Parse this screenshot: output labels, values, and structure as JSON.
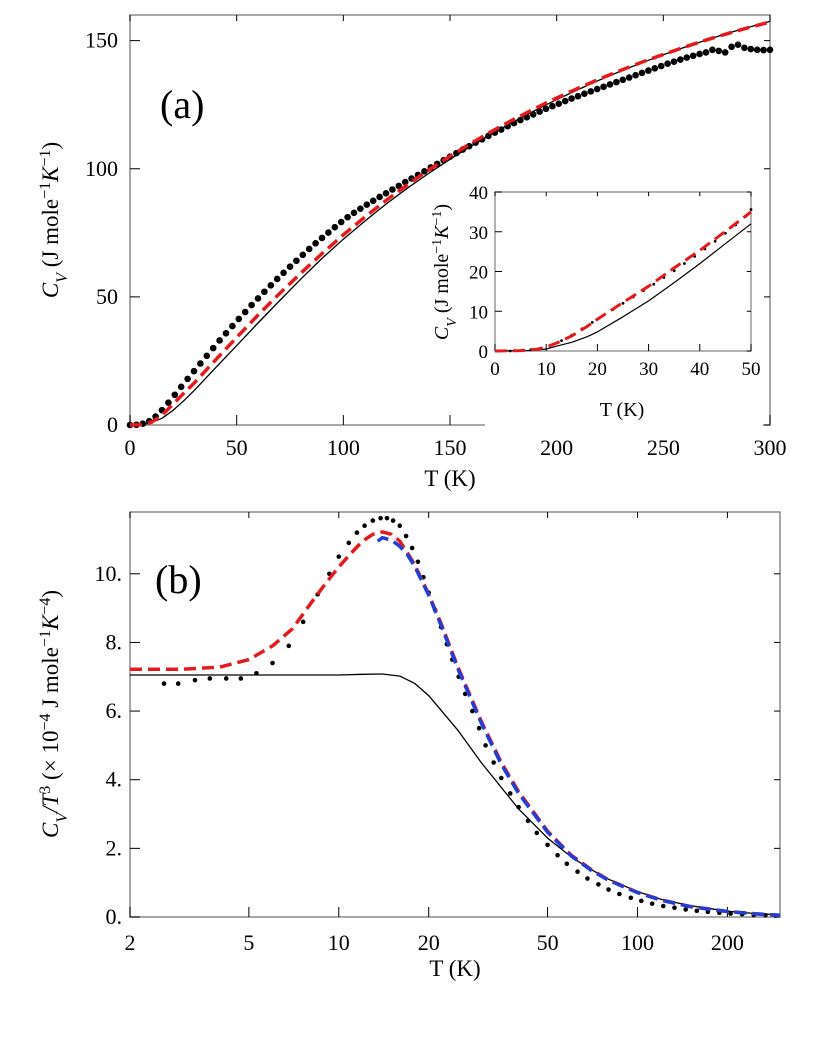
{
  "chart_data": [
    {
      "type": "scatter",
      "panel_label": "(a)",
      "xlabel": "T (K)",
      "ylabel": {
        "base": "C",
        "sub": "V",
        "units_text": " (J mole",
        "sup1": "−1",
        "k": "K",
        "sup2": "−1",
        "close": ")"
      },
      "xlim": [
        0,
        300
      ],
      "ylim": [
        0,
        160
      ],
      "x_ticks": [
        "0",
        "50",
        "100",
        "150",
        "200",
        "250",
        "300"
      ],
      "x_tick_values": [
        0,
        50,
        100,
        150,
        200,
        250,
        300
      ],
      "y_ticks": [
        "0",
        "50",
        "100",
        "150"
      ],
      "y_tick_values": [
        0,
        50,
        100,
        150
      ],
      "colors": {
        "black": "#000000",
        "red": "#e41a1c",
        "blue": "#1f3fd6"
      },
      "series": [
        {
          "style": "dots",
          "color": "#000000",
          "x": [
            0,
            3,
            6,
            9,
            12,
            15,
            18,
            21,
            24,
            27,
            30,
            33,
            36,
            39,
            42,
            45,
            48,
            51,
            54,
            57,
            60,
            63,
            66,
            69,
            72,
            75,
            78,
            81,
            84,
            87,
            90,
            93,
            96,
            99,
            102,
            105,
            108,
            111,
            114,
            117,
            120,
            123,
            126,
            129,
            132,
            135,
            138,
            141,
            144,
            147,
            150,
            153,
            156,
            159,
            162,
            165,
            168,
            171,
            174,
            177,
            180,
            183,
            186,
            189,
            192,
            195,
            198,
            201,
            204,
            207,
            210,
            213,
            216,
            219,
            222,
            225,
            228,
            231,
            234,
            237,
            240,
            243,
            246,
            249,
            252,
            255,
            258,
            261,
            264,
            267,
            270,
            273,
            276,
            279,
            282,
            285,
            288,
            291,
            294,
            297,
            300
          ],
          "y": [
            0,
            0.1,
            0.5,
            1.5,
            3.3,
            5.8,
            8.7,
            11.8,
            14.9,
            18.0,
            21.0,
            24.0,
            27.0,
            30.0,
            33.0,
            35.8,
            38.6,
            41.4,
            44.1,
            46.8,
            49.4,
            52.0,
            54.5,
            57.0,
            59.4,
            61.8,
            64.1,
            66.4,
            68.7,
            70.9,
            73.0,
            75.1,
            77.2,
            79.2,
            81.1,
            82.8,
            84.4,
            86.0,
            87.5,
            89.0,
            90.4,
            91.9,
            93.3,
            94.8,
            96.2,
            97.6,
            99.0,
            100.5,
            101.9,
            103.3,
            104.7,
            106.1,
            107.5,
            108.8,
            110.2,
            111.5,
            112.8,
            114.1,
            115.3,
            116.6,
            117.8,
            119.0,
            120.1,
            121.2,
            122.3,
            123.4,
            124.4,
            125.4,
            126.4,
            127.4,
            128.3,
            129.3,
            130.2,
            131.1,
            132.0,
            132.9,
            133.8,
            134.7,
            135.6,
            136.5,
            137.4,
            138.3,
            139.2,
            140.1,
            141.0,
            141.8,
            142.6,
            143.4,
            144.1,
            144.8,
            145.4,
            146.4,
            146.0,
            145.4,
            147.6,
            148.4,
            147.2,
            146.7,
            146.4,
            146.3,
            146.4
          ]
        },
        {
          "style": "solid",
          "color": "#000000",
          "x": [
            0,
            5,
            10,
            15,
            20,
            25,
            30,
            40,
            50,
            60,
            70,
            80,
            90,
            100,
            110,
            120,
            130,
            140,
            150,
            160,
            170,
            180,
            190,
            200,
            210,
            220,
            230,
            240,
            250,
            260,
            270,
            280,
            290,
            300
          ],
          "y": [
            0,
            0.01,
            0.9,
            2.6,
            5.6,
            9.3,
            13.4,
            22.2,
            31.0,
            39.8,
            48.4,
            56.9,
            65.0,
            72.5,
            79.5,
            86.2,
            92.4,
            98.2,
            103.7,
            108.9,
            113.8,
            118.4,
            122.8,
            127.0,
            130.9,
            134.6,
            138.1,
            141.4,
            144.5,
            147.4,
            150.2,
            152.8,
            155.2,
            157.5
          ]
        },
        {
          "style": "dashed",
          "color": "#e41a1c",
          "x": [
            0,
            5,
            10,
            15,
            20,
            25,
            30,
            40,
            50,
            60,
            70,
            80,
            90,
            100,
            110,
            120,
            130,
            140,
            150,
            160,
            170,
            180,
            190,
            200,
            210,
            220,
            230,
            240,
            250,
            260,
            270,
            280,
            290,
            300
          ],
          "y": [
            0,
            0.1,
            1.0,
            3.8,
            8.0,
            12.2,
            16.3,
            25.3,
            34.2,
            42.9,
            51.2,
            59.2,
            66.9,
            74.2,
            81.1,
            87.6,
            93.7,
            99.5,
            104.9,
            110.0,
            114.8,
            119.3,
            123.6,
            127.6,
            131.4,
            135.0,
            138.4,
            141.6,
            144.6,
            147.5,
            150.2,
            152.7,
            155.1,
            157.3
          ]
        }
      ]
    },
    {
      "type": "scatter",
      "inset_of": "(a)",
      "xlabel": "T (K)",
      "ylabel": {
        "base": "C",
        "sub": "V",
        "units_text": " (J mole",
        "sup1": "−1",
        "k": "K",
        "sup2": "−1",
        "close": ")"
      },
      "xlim": [
        0,
        50
      ],
      "ylim": [
        0,
        40
      ],
      "x_ticks": [
        "0",
        "10",
        "20",
        "30",
        "40",
        "50"
      ],
      "x_tick_values": [
        0,
        10,
        20,
        30,
        40,
        50
      ],
      "y_ticks": [
        "0",
        "10",
        "20",
        "30",
        "40"
      ],
      "y_tick_values": [
        0,
        10,
        20,
        30,
        40
      ],
      "series": [
        {
          "style": "dots",
          "color": "#000000",
          "x": [
            1,
            3,
            5,
            7,
            9,
            11,
            13,
            15,
            17,
            19,
            21,
            23,
            25,
            27,
            29,
            31,
            33,
            35,
            37,
            39,
            41,
            43,
            45,
            47,
            49,
            50
          ],
          "y": [
            0,
            0,
            0.1,
            0.3,
            0.7,
            1.5,
            2.6,
            4.0,
            5.6,
            7.2,
            8.8,
            10.4,
            12.0,
            13.6,
            15.2,
            16.8,
            18.5,
            20.2,
            22.0,
            23.8,
            25.7,
            27.6,
            29.6,
            31.7,
            33.9,
            35.6
          ]
        },
        {
          "style": "solid",
          "color": "#000000",
          "x": [
            0,
            5,
            8,
            10,
            12,
            15,
            18,
            20,
            25,
            30,
            35,
            40,
            45,
            50
          ],
          "y": [
            0,
            0.05,
            0.2,
            0.5,
            1.2,
            2.2,
            3.6,
            4.8,
            8.6,
            12.6,
            17.2,
            22.0,
            27.0,
            32.0
          ]
        },
        {
          "style": "dashed",
          "color": "#e41a1c",
          "x": [
            0,
            5,
            8,
            10,
            12,
            15,
            18,
            20,
            25,
            30,
            35,
            40,
            45,
            50
          ],
          "y": [
            0,
            0.1,
            0.4,
            1.0,
            2.0,
            3.8,
            6.2,
            8.0,
            12.2,
            16.3,
            20.9,
            25.3,
            30.1,
            35.0
          ]
        }
      ]
    },
    {
      "type": "scatter",
      "panel_label": "(b)",
      "xlabel": "T (K)",
      "x_scale": "log",
      "ylabel": {
        "base": "C",
        "sub": "V",
        "slash": "/T",
        "sup0": "3",
        "units_text": " (× 10",
        "sup1": "−4",
        "mid": " J mole",
        "sup2": "−1",
        "k": "K",
        "sup3": "−4",
        "close": ")"
      },
      "xlim": [
        2,
        300
      ],
      "ylim": [
        0,
        11.8
      ],
      "x_ticks": [
        "2",
        "5",
        "10",
        "20",
        "50",
        "100",
        "200"
      ],
      "x_tick_values": [
        2,
        5,
        10,
        20,
        50,
        100,
        200
      ],
      "y_ticks": [
        "0.",
        "2.",
        "4.",
        "6.",
        "8.",
        "10."
      ],
      "y_tick_values": [
        0,
        2,
        4,
        6,
        8,
        10
      ],
      "series": [
        {
          "style": "dots",
          "color": "#000000",
          "x": [
            2.6,
            2.9,
            3.3,
            3.7,
            4.2,
            4.7,
            5.3,
            6.0,
            6.8,
            7.6,
            8.5,
            9.3,
            10.0,
            10.8,
            11.5,
            12.2,
            13.0,
            13.8,
            14.5,
            15.2,
            16.0,
            16.8,
            17.6,
            18.4,
            19.2,
            20.0,
            21.0,
            22.0,
            23.0,
            24.0,
            25.2,
            26.5,
            28.0,
            29.5,
            31.0,
            33.0,
            35.0,
            37.5,
            40.0,
            43.0,
            46.0,
            50.0,
            54.0,
            58.0,
            63.0,
            68.0,
            74.0,
            80.0,
            87.0,
            95.0,
            103.0,
            112.0,
            122.0,
            133.0,
            145.0,
            158.0,
            172.0,
            188.0,
            205.0,
            224.0,
            245.0,
            268.0,
            290.0
          ],
          "y": [
            6.8,
            6.8,
            6.9,
            6.95,
            6.95,
            6.95,
            7.1,
            7.4,
            7.9,
            8.6,
            9.4,
            10.0,
            10.5,
            10.9,
            11.2,
            11.4,
            11.55,
            11.62,
            11.62,
            11.55,
            11.4,
            11.1,
            10.75,
            10.35,
            9.9,
            9.45,
            8.95,
            8.45,
            7.95,
            7.5,
            7.0,
            6.5,
            6.0,
            5.5,
            5.0,
            4.5,
            4.05,
            3.6,
            3.2,
            2.8,
            2.45,
            2.1,
            1.8,
            1.55,
            1.32,
            1.12,
            0.95,
            0.8,
            0.67,
            0.56,
            0.47,
            0.39,
            0.32,
            0.27,
            0.22,
            0.18,
            0.15,
            0.12,
            0.1,
            0.08,
            0.06,
            0.05,
            0.04
          ]
        },
        {
          "style": "solid",
          "color": "#000000",
          "x": [
            2,
            3,
            5,
            8,
            10,
            12,
            14,
            16,
            18,
            20,
            25,
            30,
            40,
            50,
            60,
            70,
            80,
            100,
            120,
            150,
            200,
            250,
            300
          ],
          "y": [
            7.05,
            7.05,
            7.05,
            7.05,
            7.05,
            7.07,
            7.08,
            7.02,
            6.8,
            6.45,
            5.45,
            4.5,
            3.15,
            2.3,
            1.75,
            1.38,
            1.1,
            0.74,
            0.52,
            0.33,
            0.17,
            0.1,
            0.06
          ]
        },
        {
          "style": "dashed",
          "color": "#e41a1c",
          "x": [
            2,
            3,
            4,
            5,
            6,
            7,
            8,
            9,
            10,
            11,
            12,
            13,
            14,
            15,
            16,
            17,
            18,
            20,
            22,
            25,
            30,
            35,
            40,
            50,
            60,
            70,
            80,
            100,
            120,
            150,
            200,
            250,
            300
          ],
          "y": [
            7.22,
            7.22,
            7.28,
            7.5,
            7.9,
            8.4,
            9.1,
            9.7,
            10.2,
            10.6,
            10.95,
            11.15,
            11.22,
            11.15,
            10.95,
            10.6,
            10.25,
            9.4,
            8.55,
            7.3,
            5.7,
            4.5,
            3.65,
            2.5,
            1.8,
            1.38,
            1.08,
            0.72,
            0.5,
            0.31,
            0.16,
            0.09,
            0.05
          ]
        },
        {
          "style": "dashed",
          "color": "#1f3fd6",
          "x": [
            13.5,
            14,
            15,
            16,
            17,
            18,
            20,
            22,
            25,
            30,
            35,
            40,
            50,
            60,
            70,
            80,
            100,
            120,
            150,
            200,
            250,
            300
          ],
          "y": [
            10.95,
            11.05,
            10.98,
            10.8,
            10.55,
            10.2,
            9.38,
            8.5,
            7.25,
            5.65,
            4.45,
            3.6,
            2.47,
            1.78,
            1.36,
            1.07,
            0.71,
            0.49,
            0.3,
            0.16,
            0.09,
            0.05
          ]
        }
      ]
    }
  ]
}
